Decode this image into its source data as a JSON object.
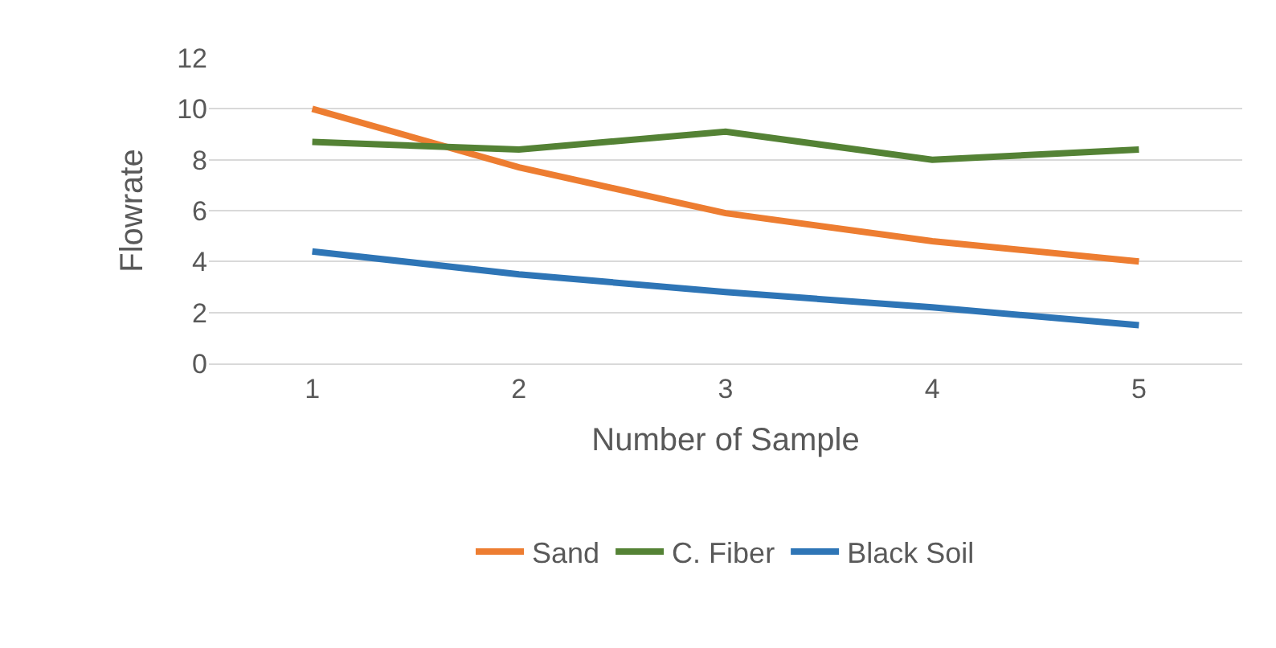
{
  "chart_data": {
    "type": "line",
    "xlabel": "Number of Sample",
    "ylabel": "Flowrate",
    "categories": [
      "1",
      "2",
      "3",
      "4",
      "5"
    ],
    "series": [
      {
        "name": "Sand",
        "color": "#ed7d31",
        "values": [
          10,
          7.7,
          5.9,
          4.8,
          4.0
        ]
      },
      {
        "name": "C. Fiber",
        "color": "#548235",
        "values": [
          8.7,
          8.4,
          9.1,
          8.0,
          8.4
        ]
      },
      {
        "name": "Black Soil",
        "color": "#2e75b6",
        "values": [
          4.4,
          3.5,
          2.8,
          2.2,
          1.5
        ]
      }
    ],
    "ylim": [
      0,
      12
    ],
    "yticks": [
      0,
      2,
      4,
      6,
      8,
      10,
      12
    ],
    "grid": "y",
    "legend": "bottom",
    "marker": "none",
    "line_style": "solid"
  }
}
